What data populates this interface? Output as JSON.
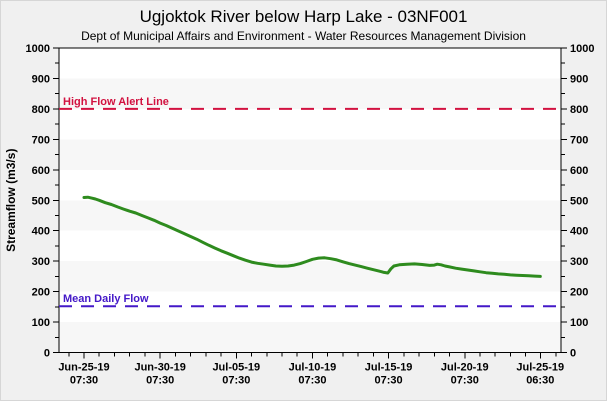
{
  "chart_data": {
    "type": "line",
    "title": "Ugjoktok River below Harp Lake - 03NF001",
    "subtitle": "Dept of Municipal Affairs and Environment - Water Resources Management Division",
    "ylabel": "Streamflow (m3/s)",
    "ylim": [
      0,
      1000
    ],
    "y_tick_labels": [
      "0",
      "100",
      "200",
      "300",
      "400",
      "500",
      "600",
      "700",
      "800",
      "900",
      "1000"
    ],
    "y_major_step": 100,
    "y_minor_step": 50,
    "x_range_days": 30,
    "x_major_ticks": [
      {
        "day": 0,
        "date": "Jun-25-19",
        "time": "07:30"
      },
      {
        "day": 5,
        "date": "Jun-30-19",
        "time": "07:30"
      },
      {
        "day": 10,
        "date": "Jul-05-19",
        "time": "07:30"
      },
      {
        "day": 15,
        "date": "Jul-10-19",
        "time": "07:30"
      },
      {
        "day": 20,
        "date": "Jul-15-19",
        "time": "07:30"
      },
      {
        "day": 25,
        "date": "Jul-20-19",
        "time": "07:30"
      },
      {
        "day": 29.958,
        "date": "Jul-25-19",
        "time": "06:30"
      }
    ],
    "x_minor_tick_days": [
      -1,
      1,
      2,
      3,
      4,
      6,
      7,
      8,
      9,
      11,
      12,
      13,
      14,
      16,
      17,
      18,
      19,
      21,
      22,
      23,
      24,
      26,
      27,
      28,
      29,
      31
    ],
    "reference_lines": [
      {
        "label": "High Flow Alert Line",
        "value": 800,
        "color": "#D21240",
        "name": "high-flow-alert-line"
      },
      {
        "label": "Mean Daily Flow",
        "value": 152,
        "color": "#4418C8",
        "name": "mean-daily-flow-line"
      }
    ],
    "series": [
      {
        "name": "Streamflow",
        "color": "#2E8B1E",
        "points": [
          [
            0,
            509
          ],
          [
            0.25,
            510
          ],
          [
            0.5,
            507
          ],
          [
            0.75,
            504
          ],
          [
            1,
            500
          ],
          [
            1.4,
            492
          ],
          [
            1.8,
            486
          ],
          [
            2.2,
            478
          ],
          [
            2.6,
            471
          ],
          [
            3,
            464
          ],
          [
            3.4,
            458
          ],
          [
            3.8,
            450
          ],
          [
            4.2,
            442
          ],
          [
            4.6,
            434
          ],
          [
            5,
            425
          ],
          [
            5.4,
            417
          ],
          [
            5.8,
            408
          ],
          [
            6.2,
            399
          ],
          [
            6.6,
            390
          ],
          [
            7,
            381
          ],
          [
            7.4,
            372
          ],
          [
            7.8,
            362
          ],
          [
            8.2,
            352
          ],
          [
            8.6,
            343
          ],
          [
            9,
            334
          ],
          [
            9.4,
            326
          ],
          [
            9.8,
            318
          ],
          [
            10.2,
            310
          ],
          [
            10.6,
            303
          ],
          [
            11,
            297
          ],
          [
            11.4,
            293
          ],
          [
            11.8,
            290
          ],
          [
            12.2,
            287
          ],
          [
            12.6,
            284
          ],
          [
            13,
            283
          ],
          [
            13.4,
            284
          ],
          [
            13.8,
            287
          ],
          [
            14.2,
            292
          ],
          [
            14.6,
            299
          ],
          [
            15,
            306
          ],
          [
            15.4,
            310
          ],
          [
            15.8,
            311
          ],
          [
            16.2,
            308
          ],
          [
            16.6,
            304
          ],
          [
            17,
            298
          ],
          [
            17.4,
            292
          ],
          [
            17.8,
            287
          ],
          [
            18.2,
            282
          ],
          [
            18.6,
            277
          ],
          [
            19,
            272
          ],
          [
            19.4,
            267
          ],
          [
            19.7,
            263
          ],
          [
            19.95,
            261
          ],
          [
            20.15,
            275
          ],
          [
            20.35,
            284
          ],
          [
            20.7,
            288
          ],
          [
            21.2,
            290
          ],
          [
            21.7,
            291
          ],
          [
            22.2,
            289
          ],
          [
            22.7,
            286
          ],
          [
            23,
            287
          ],
          [
            23.2,
            290
          ],
          [
            23.45,
            288
          ],
          [
            23.7,
            284
          ],
          [
            24,
            281
          ],
          [
            24.4,
            277
          ],
          [
            24.8,
            274
          ],
          [
            25.2,
            271
          ],
          [
            25.6,
            268
          ],
          [
            26,
            265
          ],
          [
            26.4,
            262
          ],
          [
            26.8,
            260
          ],
          [
            27.2,
            258
          ],
          [
            27.6,
            257
          ],
          [
            28,
            255
          ],
          [
            28.4,
            254
          ],
          [
            28.8,
            253
          ],
          [
            29.2,
            252
          ],
          [
            29.6,
            251
          ],
          [
            29.96,
            250
          ]
        ]
      }
    ],
    "colors": {
      "window_background": "#F0F0F0",
      "plot_background": "#FFFFFF",
      "band": "#F7F7F7",
      "axis": "#000000"
    },
    "layout": {
      "legend": "none",
      "grid": "alternating horizontal bands every 100 units",
      "dual_y_axis": true
    }
  }
}
